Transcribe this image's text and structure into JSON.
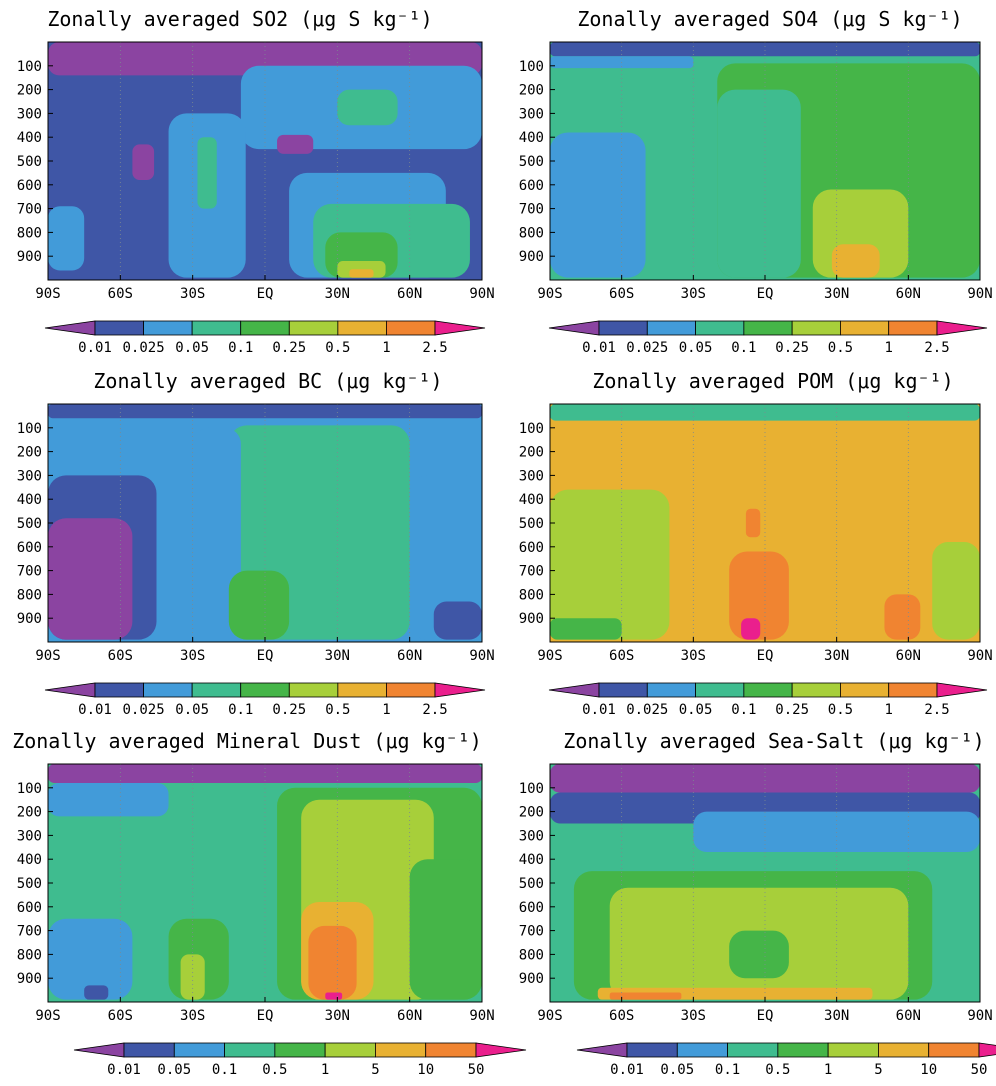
{
  "chart_data": [
    {
      "type": "heatmap",
      "id": "so2",
      "title": "Zonally averaged SO2 (μg S kg⁻¹)",
      "xticks": [
        "90S",
        "60S",
        "30S",
        "EQ",
        "30N",
        "60N",
        "90N"
      ],
      "yticks": [
        "100",
        "200",
        "300",
        "400",
        "500",
        "600",
        "700",
        "800",
        "900"
      ],
      "xlim": [
        -90,
        90
      ],
      "ylim": [
        1000,
        0
      ],
      "levels": [
        "0.01",
        "0.025",
        "0.05",
        "0.1",
        "0.25",
        "0.5",
        "1",
        "2.5"
      ],
      "background_level": 1,
      "regions": [
        {
          "level": 0,
          "lat_range": [
            -90,
            90
          ],
          "p_range": [
            0,
            140
          ]
        },
        {
          "level": 2,
          "lat_range": [
            -10,
            90
          ],
          "p_range": [
            100,
            450
          ]
        },
        {
          "level": 3,
          "lat_range": [
            30,
            55
          ],
          "p_range": [
            200,
            350
          ]
        },
        {
          "level": 0,
          "lat_range": [
            5,
            20
          ],
          "p_range": [
            390,
            470
          ]
        },
        {
          "level": 0,
          "lat_range": [
            -55,
            -46
          ],
          "p_range": [
            430,
            580
          ]
        },
        {
          "level": 2,
          "lat_range": [
            -90,
            -75
          ],
          "p_range": [
            690,
            960
          ]
        },
        {
          "level": 2,
          "lat_range": [
            -40,
            -8
          ],
          "p_range": [
            300,
            990
          ]
        },
        {
          "level": 3,
          "lat_range": [
            -28,
            -20
          ],
          "p_range": [
            400,
            700
          ]
        },
        {
          "level": 2,
          "lat_range": [
            10,
            75
          ],
          "p_range": [
            550,
            990
          ]
        },
        {
          "level": 3,
          "lat_range": [
            20,
            85
          ],
          "p_range": [
            680,
            990
          ]
        },
        {
          "level": 4,
          "lat_range": [
            25,
            55
          ],
          "p_range": [
            800,
            990
          ]
        },
        {
          "level": 5,
          "lat_range": [
            30,
            50
          ],
          "p_range": [
            920,
            990
          ]
        },
        {
          "level": 6,
          "lat_range": [
            35,
            45
          ],
          "p_range": [
            955,
            990
          ]
        }
      ]
    },
    {
      "type": "heatmap",
      "id": "so4",
      "title": "Zonally averaged SO4 (μg S kg⁻¹)",
      "xticks": [
        "90S",
        "60S",
        "30S",
        "EQ",
        "30N",
        "60N",
        "90N"
      ],
      "yticks": [
        "100",
        "200",
        "300",
        "400",
        "500",
        "600",
        "700",
        "800",
        "900"
      ],
      "xlim": [
        -90,
        90
      ],
      "ylim": [
        1000,
        0
      ],
      "levels": [
        "0.01",
        "0.025",
        "0.05",
        "0.1",
        "0.25",
        "0.5",
        "1",
        "2.5"
      ],
      "background_level": 3,
      "regions": [
        {
          "level": 1,
          "lat_range": [
            -90,
            90
          ],
          "p_range": [
            0,
            60
          ]
        },
        {
          "level": 2,
          "lat_range": [
            -90,
            -30
          ],
          "p_range": [
            60,
            110
          ]
        },
        {
          "level": 4,
          "lat_range": [
            -20,
            90
          ],
          "p_range": [
            90,
            990
          ]
        },
        {
          "level": 3,
          "lat_range": [
            -20,
            15
          ],
          "p_range": [
            200,
            990
          ]
        },
        {
          "level": 2,
          "lat_range": [
            -90,
            -50
          ],
          "p_range": [
            380,
            990
          ]
        },
        {
          "level": 5,
          "lat_range": [
            20,
            60
          ],
          "p_range": [
            620,
            990
          ]
        },
        {
          "level": 6,
          "lat_range": [
            28,
            48
          ],
          "p_range": [
            850,
            990
          ]
        }
      ]
    },
    {
      "type": "heatmap",
      "id": "bc",
      "title": "Zonally averaged BC (μg kg⁻¹)",
      "xticks": [
        "90S",
        "60S",
        "30S",
        "EQ",
        "30N",
        "60N",
        "90N"
      ],
      "yticks": [
        "100",
        "200",
        "300",
        "400",
        "500",
        "600",
        "700",
        "800",
        "900"
      ],
      "xlim": [
        -90,
        90
      ],
      "ylim": [
        1000,
        0
      ],
      "levels": [
        "0.01",
        "0.025",
        "0.05",
        "0.1",
        "0.25",
        "0.5",
        "1",
        "2.5"
      ],
      "background_level": 2,
      "regions": [
        {
          "level": 1,
          "lat_range": [
            -90,
            90
          ],
          "p_range": [
            0,
            60
          ]
        },
        {
          "level": 3,
          "lat_range": [
            -15,
            60
          ],
          "p_range": [
            90,
            990
          ]
        },
        {
          "level": 2,
          "lat_range": [
            -30,
            -10
          ],
          "p_range": [
            100,
            990
          ]
        },
        {
          "level": 1,
          "lat_range": [
            -90,
            -45
          ],
          "p_range": [
            300,
            990
          ]
        },
        {
          "level": 0,
          "lat_range": [
            -90,
            -55
          ],
          "p_range": [
            480,
            990
          ]
        },
        {
          "level": 2,
          "lat_range": [
            60,
            90
          ],
          "p_range": [
            300,
            990
          ]
        },
        {
          "level": 1,
          "lat_range": [
            70,
            90
          ],
          "p_range": [
            830,
            990
          ]
        },
        {
          "level": 4,
          "lat_range": [
            -15,
            10
          ],
          "p_range": [
            700,
            990
          ]
        }
      ]
    },
    {
      "type": "heatmap",
      "id": "pom",
      "title": "Zonally averaged POM (μg kg⁻¹)",
      "xticks": [
        "90S",
        "60S",
        "30S",
        "EQ",
        "30N",
        "60N",
        "90N"
      ],
      "yticks": [
        "100",
        "200",
        "300",
        "400",
        "500",
        "600",
        "700",
        "800",
        "900"
      ],
      "xlim": [
        -90,
        90
      ],
      "ylim": [
        1000,
        0
      ],
      "levels": [
        "0.01",
        "0.025",
        "0.05",
        "0.1",
        "0.25",
        "0.5",
        "1",
        "2.5"
      ],
      "background_level": 6,
      "regions": [
        {
          "level": 3,
          "lat_range": [
            -90,
            90
          ],
          "p_range": [
            0,
            70
          ]
        },
        {
          "level": 5,
          "lat_range": [
            -90,
            -40
          ],
          "p_range": [
            360,
            990
          ]
        },
        {
          "level": 5,
          "lat_range": [
            70,
            90
          ],
          "p_range": [
            580,
            990
          ]
        },
        {
          "level": 4,
          "lat_range": [
            -90,
            -60
          ],
          "p_range": [
            900,
            990
          ]
        },
        {
          "level": 7,
          "lat_range": [
            -15,
            10
          ],
          "p_range": [
            620,
            990
          ]
        },
        {
          "level": 7,
          "lat_range": [
            50,
            65
          ],
          "p_range": [
            800,
            990
          ]
        },
        {
          "level": 7,
          "lat_range": [
            -8,
            -2
          ],
          "p_range": [
            440,
            560
          ]
        },
        {
          "level": 8,
          "lat_range": [
            -10,
            -2
          ],
          "p_range": [
            900,
            990
          ]
        }
      ]
    },
    {
      "type": "heatmap",
      "id": "dust",
      "title": "Zonally averaged Mineral Dust (μg kg⁻¹)",
      "xticks": [
        "90S",
        "60S",
        "30S",
        "EQ",
        "30N",
        "60N",
        "90N"
      ],
      "yticks": [
        "100",
        "200",
        "300",
        "400",
        "500",
        "600",
        "700",
        "800",
        "900"
      ],
      "xlim": [
        -90,
        90
      ],
      "ylim": [
        1000,
        0
      ],
      "levels": [
        "0.01",
        "0.05",
        "0.1",
        "0.5",
        "1",
        "5",
        "10",
        "50"
      ],
      "background_level": 3,
      "regions": [
        {
          "level": 0,
          "lat_range": [
            -90,
            90
          ],
          "p_range": [
            0,
            80
          ]
        },
        {
          "level": 2,
          "lat_range": [
            -90,
            -40
          ],
          "p_range": [
            80,
            220
          ]
        },
        {
          "level": 4,
          "lat_range": [
            5,
            90
          ],
          "p_range": [
            100,
            990
          ]
        },
        {
          "level": 5,
          "lat_range": [
            15,
            70
          ],
          "p_range": [
            150,
            990
          ]
        },
        {
          "level": 4,
          "lat_range": [
            60,
            90
          ],
          "p_range": [
            400,
            990
          ]
        },
        {
          "level": 6,
          "lat_range": [
            15,
            45
          ],
          "p_range": [
            580,
            990
          ]
        },
        {
          "level": 7,
          "lat_range": [
            18,
            38
          ],
          "p_range": [
            680,
            990
          ]
        },
        {
          "level": 8,
          "lat_range": [
            25,
            32
          ],
          "p_range": [
            960,
            990
          ]
        },
        {
          "level": 2,
          "lat_range": [
            -90,
            -55
          ],
          "p_range": [
            650,
            990
          ]
        },
        {
          "level": 1,
          "lat_range": [
            -75,
            -65
          ],
          "p_range": [
            930,
            990
          ]
        },
        {
          "level": 4,
          "lat_range": [
            -40,
            -15
          ],
          "p_range": [
            650,
            990
          ]
        },
        {
          "level": 5,
          "lat_range": [
            -35,
            -25
          ],
          "p_range": [
            800,
            990
          ]
        }
      ]
    },
    {
      "type": "heatmap",
      "id": "seasalt",
      "title": "Zonally averaged Sea-Salt (μg kg⁻¹)",
      "xticks": [
        "90S",
        "60S",
        "30S",
        "EQ",
        "30N",
        "60N",
        "90N"
      ],
      "yticks": [
        "100",
        "200",
        "300",
        "400",
        "500",
        "600",
        "700",
        "800",
        "900"
      ],
      "xlim": [
        -90,
        90
      ],
      "ylim": [
        1000,
        0
      ],
      "levels": [
        "0.01",
        "0.05",
        "0.1",
        "0.5",
        "1",
        "5",
        "10",
        "50"
      ],
      "background_level": 3,
      "regions": [
        {
          "level": 0,
          "lat_range": [
            -90,
            90
          ],
          "p_range": [
            0,
            120
          ]
        },
        {
          "level": 1,
          "lat_range": [
            -90,
            90
          ],
          "p_range": [
            120,
            250
          ]
        },
        {
          "level": 2,
          "lat_range": [
            -30,
            90
          ],
          "p_range": [
            200,
            370
          ]
        },
        {
          "level": 4,
          "lat_range": [
            -80,
            70
          ],
          "p_range": [
            450,
            990
          ]
        },
        {
          "level": 5,
          "lat_range": [
            -65,
            60
          ],
          "p_range": [
            520,
            990
          ]
        },
        {
          "level": 4,
          "lat_range": [
            -15,
            10
          ],
          "p_range": [
            700,
            900
          ]
        },
        {
          "level": 6,
          "lat_range": [
            -70,
            45
          ],
          "p_range": [
            940,
            990
          ]
        },
        {
          "level": 7,
          "lat_range": [
            -65,
            -35
          ],
          "p_range": [
            960,
            990
          ]
        }
      ]
    }
  ],
  "colors": {
    "level_colors": [
      "#8b44a1",
      "#3f56a6",
      "#429bd9",
      "#3fbc8f",
      "#45b548",
      "#a7cf3a",
      "#e8b132",
      "#f08431",
      "#ea1f8d"
    ],
    "grid": "#7c8a8f"
  }
}
